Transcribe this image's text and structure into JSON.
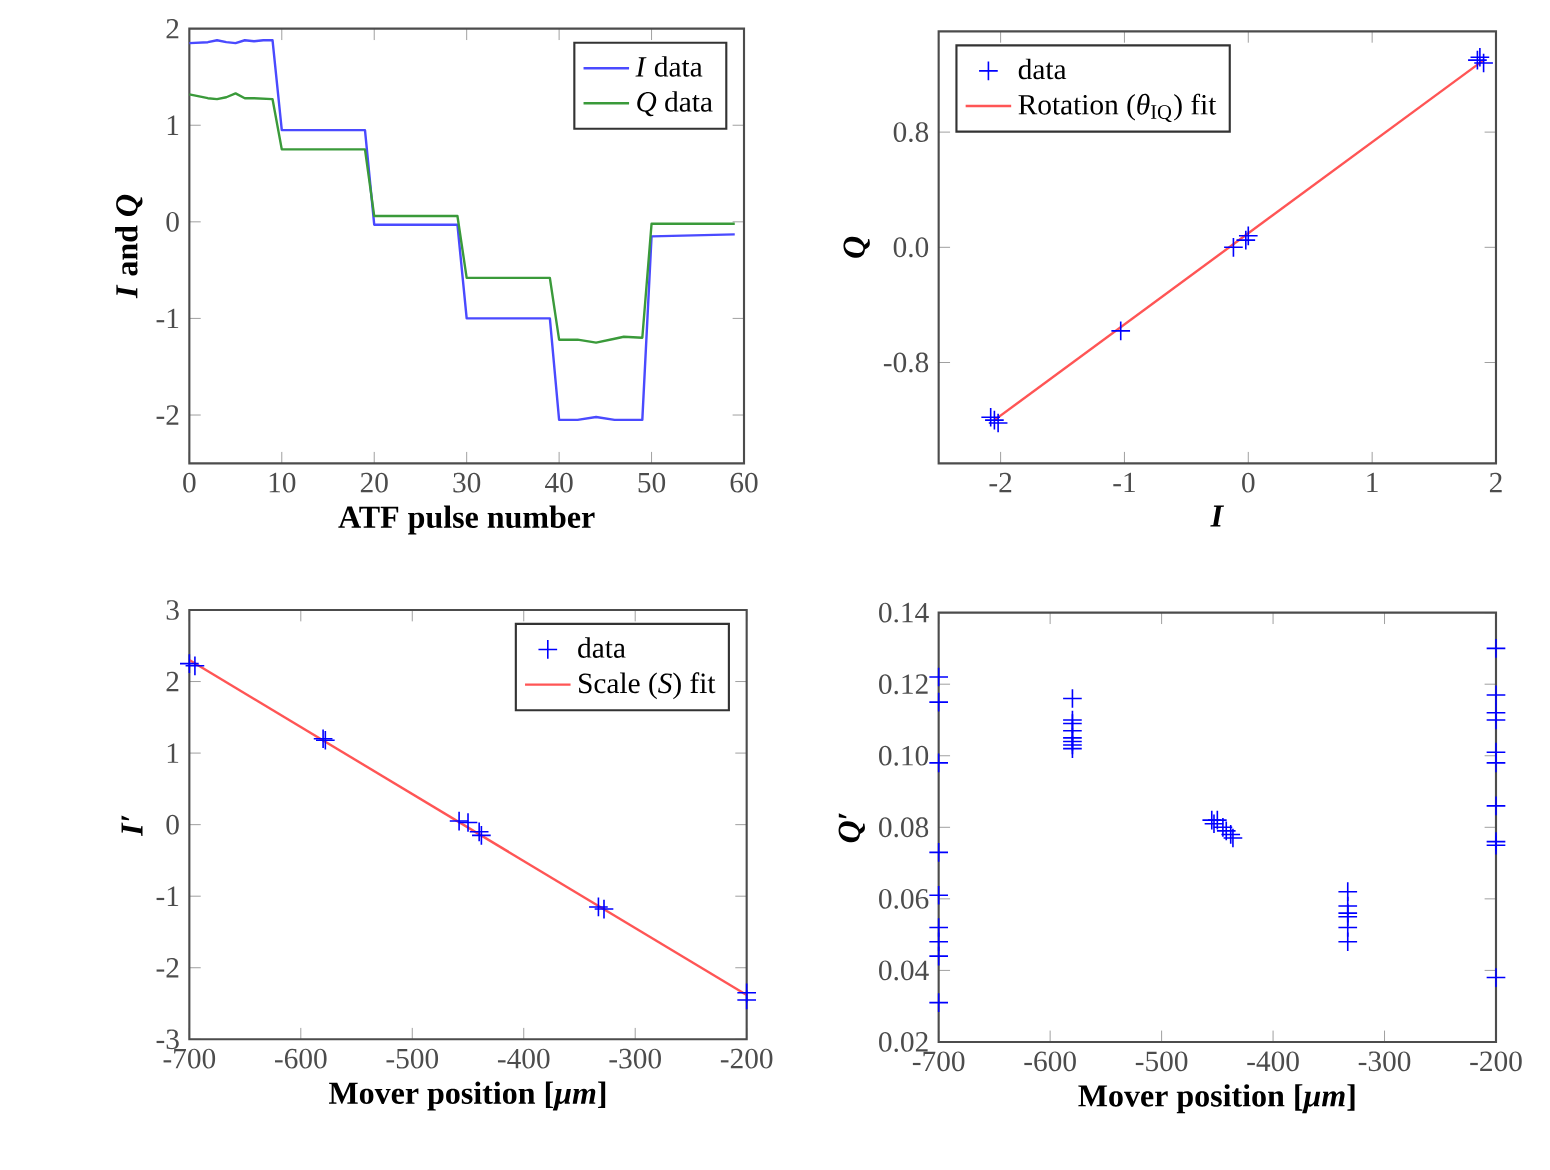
{
  "chart_data": [
    {
      "type": "line",
      "xlabel": "ATF pulse number",
      "ylabel": "*I* and *Q*",
      "xlim": [
        0,
        60
      ],
      "ylim": [
        -2.5,
        2
      ],
      "xticks": [
        0,
        10,
        20,
        30,
        40,
        50,
        60
      ],
      "yticks": [
        -2,
        -1,
        0,
        1,
        2
      ],
      "legend": "top right",
      "series": [
        {
          "name": "*I* data",
          "color": "#4a4aff",
          "x": [
            0,
            2,
            3,
            4,
            5,
            6,
            7,
            8,
            9,
            10,
            19,
            20,
            29,
            30,
            39,
            40,
            42,
            44,
            46,
            49,
            50,
            59
          ],
          "values": [
            1.85,
            1.86,
            1.88,
            1.86,
            1.85,
            1.88,
            1.87,
            1.88,
            1.88,
            0.95,
            0.95,
            -0.03,
            -0.03,
            -1.0,
            -1.0,
            -2.05,
            -2.05,
            -2.02,
            -2.05,
            -2.05,
            -0.15,
            -0.13
          ]
        },
        {
          "name": "*Q* data",
          "color": "#3a9a3a",
          "x": [
            0,
            2,
            3,
            4,
            5,
            6,
            7,
            9,
            10,
            19,
            20,
            29,
            30,
            39,
            40,
            42,
            44,
            46,
            47,
            49,
            50,
            59
          ],
          "values": [
            1.32,
            1.28,
            1.27,
            1.29,
            1.33,
            1.28,
            1.28,
            1.27,
            0.75,
            0.75,
            0.06,
            0.06,
            -0.58,
            -0.58,
            -1.22,
            -1.22,
            -1.25,
            -1.21,
            -1.19,
            -1.2,
            -0.02,
            -0.02
          ]
        }
      ]
    },
    {
      "type": "scatter",
      "xlabel": "*I*",
      "ylabel": "*Q*",
      "xlim": [
        -2.5,
        2
      ],
      "ylim": [
        -1.5,
        1.5
      ],
      "xticks": [
        -2,
        -1,
        0,
        1,
        2
      ],
      "yticks": [
        -0.8,
        {
          "value": 0,
          "label": "0.0"
        },
        0.8
      ],
      "legend": "top left",
      "series": [
        {
          "name": "data",
          "color": "#0000ff",
          "marker": "cross",
          "x": [
            -2.08,
            -2.05,
            -2.02,
            -1.03,
            -0.12,
            -0.02,
            0.0,
            1.85,
            1.87,
            1.9
          ],
          "values": [
            -1.18,
            -1.2,
            -1.22,
            -0.58,
            0.0,
            0.05,
            0.08,
            1.3,
            1.32,
            1.28
          ]
        },
        {
          "name": "Rotation (*θ*$_{IQ}$) fit",
          "type": "line",
          "color": "#ff5555",
          "x": [
            -2.05,
            1.9
          ],
          "values": [
            -1.2,
            1.3
          ]
        }
      ]
    },
    {
      "type": "scatter",
      "xlabel": "Mover position [*μm*]",
      "ylabel": "*I*′",
      "xlim": [
        -700,
        -200
      ],
      "ylim": [
        -3,
        3
      ],
      "xticks": [
        -700,
        -600,
        -500,
        -400,
        -300,
        -200
      ],
      "yticks": [
        -3,
        -2,
        -1,
        0,
        1,
        2,
        3
      ],
      "legend": "top right",
      "series": [
        {
          "name": "data",
          "color": "#0000ff",
          "marker": "cross",
          "x": [
            -700,
            -695,
            -580,
            -578,
            -458,
            -450,
            -440,
            -438,
            -333,
            -328,
            -200,
            -200
          ],
          "values": [
            2.25,
            2.22,
            1.2,
            1.18,
            0.05,
            0.03,
            -0.1,
            -0.15,
            -1.15,
            -1.18,
            -2.35,
            -2.45
          ]
        },
        {
          "name": "Scale (*S*) fit",
          "type": "line",
          "color": "#ff5555",
          "x": [
            -700,
            -200
          ],
          "values": [
            2.3,
            -2.38
          ]
        }
      ]
    },
    {
      "type": "scatter",
      "xlabel": "Mover position [*μm*]",
      "ylabel": "*Q*′",
      "xlim": [
        -700,
        -200
      ],
      "ylim": [
        0.02,
        0.14
      ],
      "xticks": [
        -700,
        -600,
        -500,
        -400,
        -300,
        -200
      ],
      "yticks": [
        0.02,
        0.04,
        0.06,
        0.08,
        {
          "value": 0.1,
          "label": "0.10"
        },
        0.12,
        0.14
      ],
      "marker": "cross",
      "series": [
        {
          "color": "#0000ff",
          "x": [
            -700,
            -700,
            -700,
            -700,
            -700,
            -700,
            -700,
            -700,
            -700,
            -580,
            -580,
            -580,
            -580,
            -580,
            -580,
            -580,
            -580,
            -455,
            -453,
            -450,
            -445,
            -442,
            -438,
            -436,
            -333,
            -333,
            -333,
            -333,
            -333,
            -333,
            -200,
            -200,
            -200,
            -200,
            -200,
            -200,
            -200,
            -200,
            -200,
            -200
          ],
          "values": [
            0.122,
            0.115,
            0.098,
            0.073,
            0.061,
            0.052,
            0.048,
            0.044,
            0.031,
            0.116,
            0.11,
            0.109,
            0.107,
            0.105,
            0.104,
            0.103,
            0.102,
            0.082,
            0.081,
            0.082,
            0.08,
            0.079,
            0.078,
            0.077,
            0.062,
            0.058,
            0.056,
            0.055,
            0.052,
            0.048,
            0.13,
            0.117,
            0.112,
            0.11,
            0.101,
            0.098,
            0.086,
            0.076,
            0.075,
            0.038
          ]
        }
      ]
    }
  ]
}
